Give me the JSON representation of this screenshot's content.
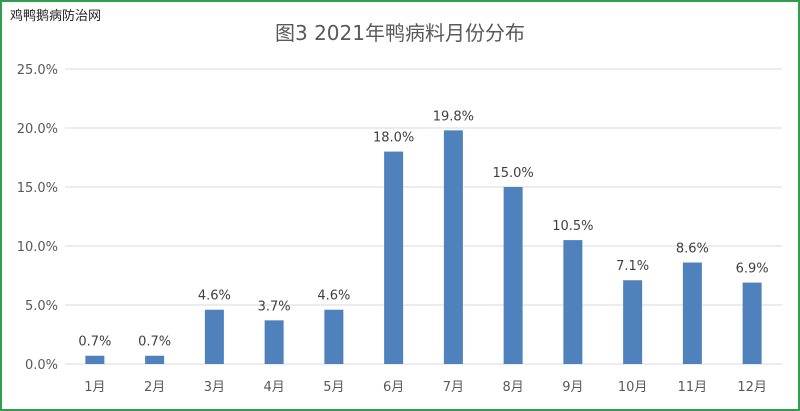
{
  "watermark": "鸡鸭鹅病防治网",
  "chart_data": {
    "type": "bar",
    "title": "图3 2021年鸭病料月份分布",
    "categories": [
      "1月",
      "2月",
      "3月",
      "4月",
      "5月",
      "6月",
      "7月",
      "8月",
      "9月",
      "10月",
      "11月",
      "12月"
    ],
    "values": [
      0.7,
      0.7,
      4.6,
      3.7,
      4.6,
      18.0,
      19.8,
      15.0,
      10.5,
      7.1,
      8.6,
      6.9
    ],
    "value_labels": [
      "0.7%",
      "0.7%",
      "4.6%",
      "3.7%",
      "4.6%",
      "18.0%",
      "19.8%",
      "15.0%",
      "10.5%",
      "7.1%",
      "8.6%",
      "6.9%"
    ],
    "y_ticks": [
      0,
      5,
      10,
      15,
      20,
      25
    ],
    "y_tick_labels": [
      "0.0%",
      "5.0%",
      "10.0%",
      "15.0%",
      "20.0%",
      "25.0%"
    ],
    "ylim": [
      0,
      25
    ],
    "xlabel": "",
    "ylabel": "",
    "grid": true,
    "bar_color": "#4f81bd"
  }
}
